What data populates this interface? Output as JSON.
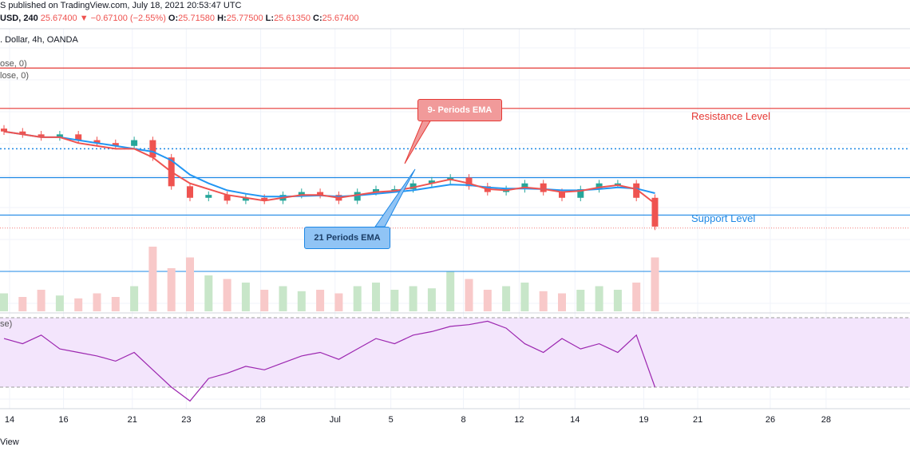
{
  "header": {
    "line1": "S published on TradingView.com, July 18, 2021 20:53:47 UTC",
    "symbol": "USD, 240",
    "last": "25.67400",
    "change": "−0.67100 (−2.55%)",
    "o_label": "O:",
    "o": "25.71580",
    "h_label": "H:",
    "h": "25.77500",
    "l_label": "L:",
    "l": "25.61350",
    "c_label": "C:",
    "c": "25.67400",
    "line3": ". Dollar, 4h, OANDA",
    "legend1": "ose, 0)",
    "legend2": "lose, 0)",
    "rsi_legend": "se)"
  },
  "annotations": {
    "resistance": "Resistance Level",
    "support": "Support Level",
    "ema9": "9- Periods EMA",
    "ema21": "21 Periods EMA"
  },
  "footer": {
    "brand": "View"
  },
  "colors": {
    "up": "#26a69a",
    "down": "#ef5350",
    "ema9": "#ef5350",
    "ema21": "#2196f3",
    "rsi": "#9c27b0",
    "rsi_band": "#f3e5fc",
    "resistance": "#e53935",
    "support": "#1e88e5"
  },
  "chart_data": {
    "type": "candlestick",
    "timeframe": "4h",
    "x_ticks": [
      "14",
      "16",
      "21",
      "23",
      "28",
      "Jul",
      "5",
      "8",
      "12",
      "14",
      "19",
      "21",
      "26",
      "28"
    ],
    "x_tick_pos": [
      0.3,
      3.2,
      6.9,
      9.8,
      13.8,
      17.8,
      20.8,
      24.7,
      27.7,
      30.7,
      34.4,
      37.3,
      41.2,
      44.2
    ],
    "last_index": 34,
    "price": {
      "ylim": [
        25.2,
        28.8
      ],
      "resistance_lines": [
        28.45,
        27.75
      ],
      "dotted_level": 27.05,
      "support_lines": [
        26.55,
        25.9
      ],
      "last_close": 25.674,
      "close": [
        27.35,
        27.3,
        27.25,
        27.3,
        27.2,
        27.15,
        27.1,
        27.2,
        26.9,
        26.4,
        26.2,
        26.25,
        26.15,
        26.2,
        26.15,
        26.25,
        26.3,
        26.25,
        26.15,
        26.3,
        26.35,
        26.35,
        26.45,
        26.5,
        26.55,
        26.4,
        26.3,
        26.35,
        26.45,
        26.3,
        26.2,
        26.35,
        26.45,
        26.45,
        26.2,
        25.7
      ],
      "ema9": [
        27.35,
        27.3,
        27.25,
        27.25,
        27.15,
        27.1,
        27.05,
        27.05,
        26.9,
        26.65,
        26.45,
        26.35,
        26.25,
        26.2,
        26.15,
        26.2,
        26.25,
        26.25,
        26.2,
        26.25,
        26.3,
        26.32,
        26.38,
        26.45,
        26.52,
        26.45,
        26.35,
        26.33,
        26.38,
        26.35,
        26.3,
        26.32,
        26.38,
        26.42,
        26.35,
        26.1
      ],
      "ema21": [
        27.35,
        27.3,
        27.25,
        27.25,
        27.2,
        27.15,
        27.1,
        27.05,
        27.0,
        26.85,
        26.6,
        26.45,
        26.33,
        26.27,
        26.22,
        26.22,
        26.23,
        26.24,
        26.22,
        26.24,
        26.27,
        26.3,
        26.33,
        26.38,
        26.43,
        26.42,
        26.38,
        26.36,
        26.36,
        26.35,
        26.33,
        26.33,
        26.35,
        26.38,
        26.36,
        26.28
      ]
    },
    "volume": [
      0.25,
      0.2,
      0.3,
      0.22,
      0.18,
      0.25,
      0.2,
      0.35,
      0.9,
      0.6,
      0.75,
      0.5,
      0.45,
      0.4,
      0.3,
      0.35,
      0.28,
      0.3,
      0.25,
      0.35,
      0.4,
      0.3,
      0.35,
      0.32,
      0.55,
      0.45,
      0.3,
      0.35,
      0.4,
      0.28,
      0.25,
      0.3,
      0.35,
      0.3,
      0.4,
      0.75
    ],
    "rsi": {
      "range": [
        0,
        100
      ],
      "bands": [
        30,
        70
      ],
      "values": [
        58,
        55,
        60,
        52,
        50,
        48,
        45,
        50,
        40,
        30,
        22,
        35,
        38,
        42,
        40,
        44,
        48,
        50,
        46,
        52,
        58,
        55,
        60,
        62,
        65,
        66,
        68,
        64,
        55,
        50,
        58,
        52,
        55,
        50,
        60,
        30
      ]
    }
  }
}
